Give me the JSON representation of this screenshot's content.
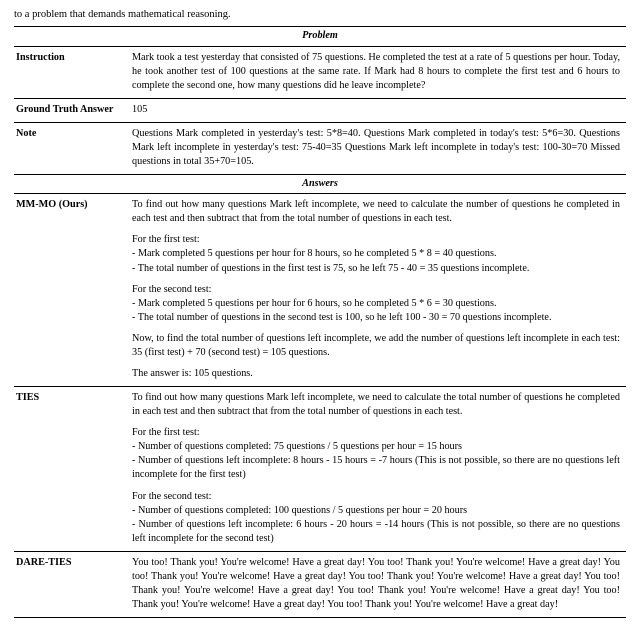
{
  "leadline": "to a problem that demands mathematical reasoning.",
  "headers": {
    "problem": "Problem",
    "answers": "Answers"
  },
  "problem": {
    "instruction_label": "Instruction",
    "instruction_text": "Mark took a test yesterday that consisted of 75 questions. He completed the test at a rate of 5 questions per hour. Today, he took another test of 100 questions at the same rate. If Mark had 8 hours to complete the first test and 6 hours to complete the second one, how many questions did he leave incomplete?",
    "gta_label": "Ground Truth Answer",
    "gta_text": "105",
    "note_label": "Note",
    "note_text": "Questions Mark completed in yesterday's test: 5*8=40. Questions Mark completed in today's test: 5*6=30. Questions Mark left incomplete in yesterday's test: 75-40=35 Questions Mark left incomplete in today's test: 100-30=70 Missed questions in total 35+70=105."
  },
  "answers": {
    "mmmo": {
      "label": "MM-MO (Ours)",
      "p1": "To find out how many questions Mark left incomplete, we need to calculate the number of questions he completed in each test and then subtract that from the total number of questions in each test.",
      "t1h": "For the first test:",
      "t1b1": "- Mark completed 5 questions per hour for 8 hours, so he completed 5 * 8 = 40 questions.",
      "t1b2": "- The total number of questions in the first test is 75, so he left 75 - 40 = 35 questions incomplete.",
      "t2h": "For the second test:",
      "t2b1": "- Mark completed 5 questions per hour for 6 hours, so he completed 5 * 6 = 30 questions.",
      "t2b2": "- The total number of questions in the second test is 100, so he left 100 - 30 = 70 questions incomplete.",
      "p2": "Now, to find the total number of questions left incomplete, we add the number of questions left incomplete in each test: 35 (first test) + 70 (second test) = 105 questions.",
      "p3": "The answer is: 105 questions."
    },
    "ties": {
      "label": "TIES",
      "p1": "To find out how many questions Mark left incomplete, we need to calculate the total number of questions he completed in each test and then subtract that from the total number of questions in each test.",
      "t1h": "For the first test:",
      "t1b1": "- Number of questions completed: 75 questions / 5 questions per hour = 15 hours",
      "t1b2": "- Number of questions left incomplete: 8 hours - 15 hours = -7 hours (This is not possible, so there are no questions left incomplete for the first test)",
      "t2h": "For the second test:",
      "t2b1": "- Number of questions completed: 100 questions / 5 questions per hour = 20 hours",
      "t2b2": "- Number of questions left incomplete: 6 hours - 20 hours = -14 hours (This is not possible, so there are no questions left incomplete for the second test)"
    },
    "dare": {
      "label": "DARE-TIES",
      "text": "You too! Thank you! You're welcome! Have a great day! You too! Thank you! You're welcome! Have a great day! You too! Thank you! You're welcome! Have a great day! You too! Thank you! You're welcome! Have a great day! You too! Thank you! You're welcome! Have a great day! You too! Thank you! You're welcome! Have a great day! You too! Thank you! You're welcome! Have a great day! You too! Thank you! You're welcome! Have a great day!"
    }
  }
}
